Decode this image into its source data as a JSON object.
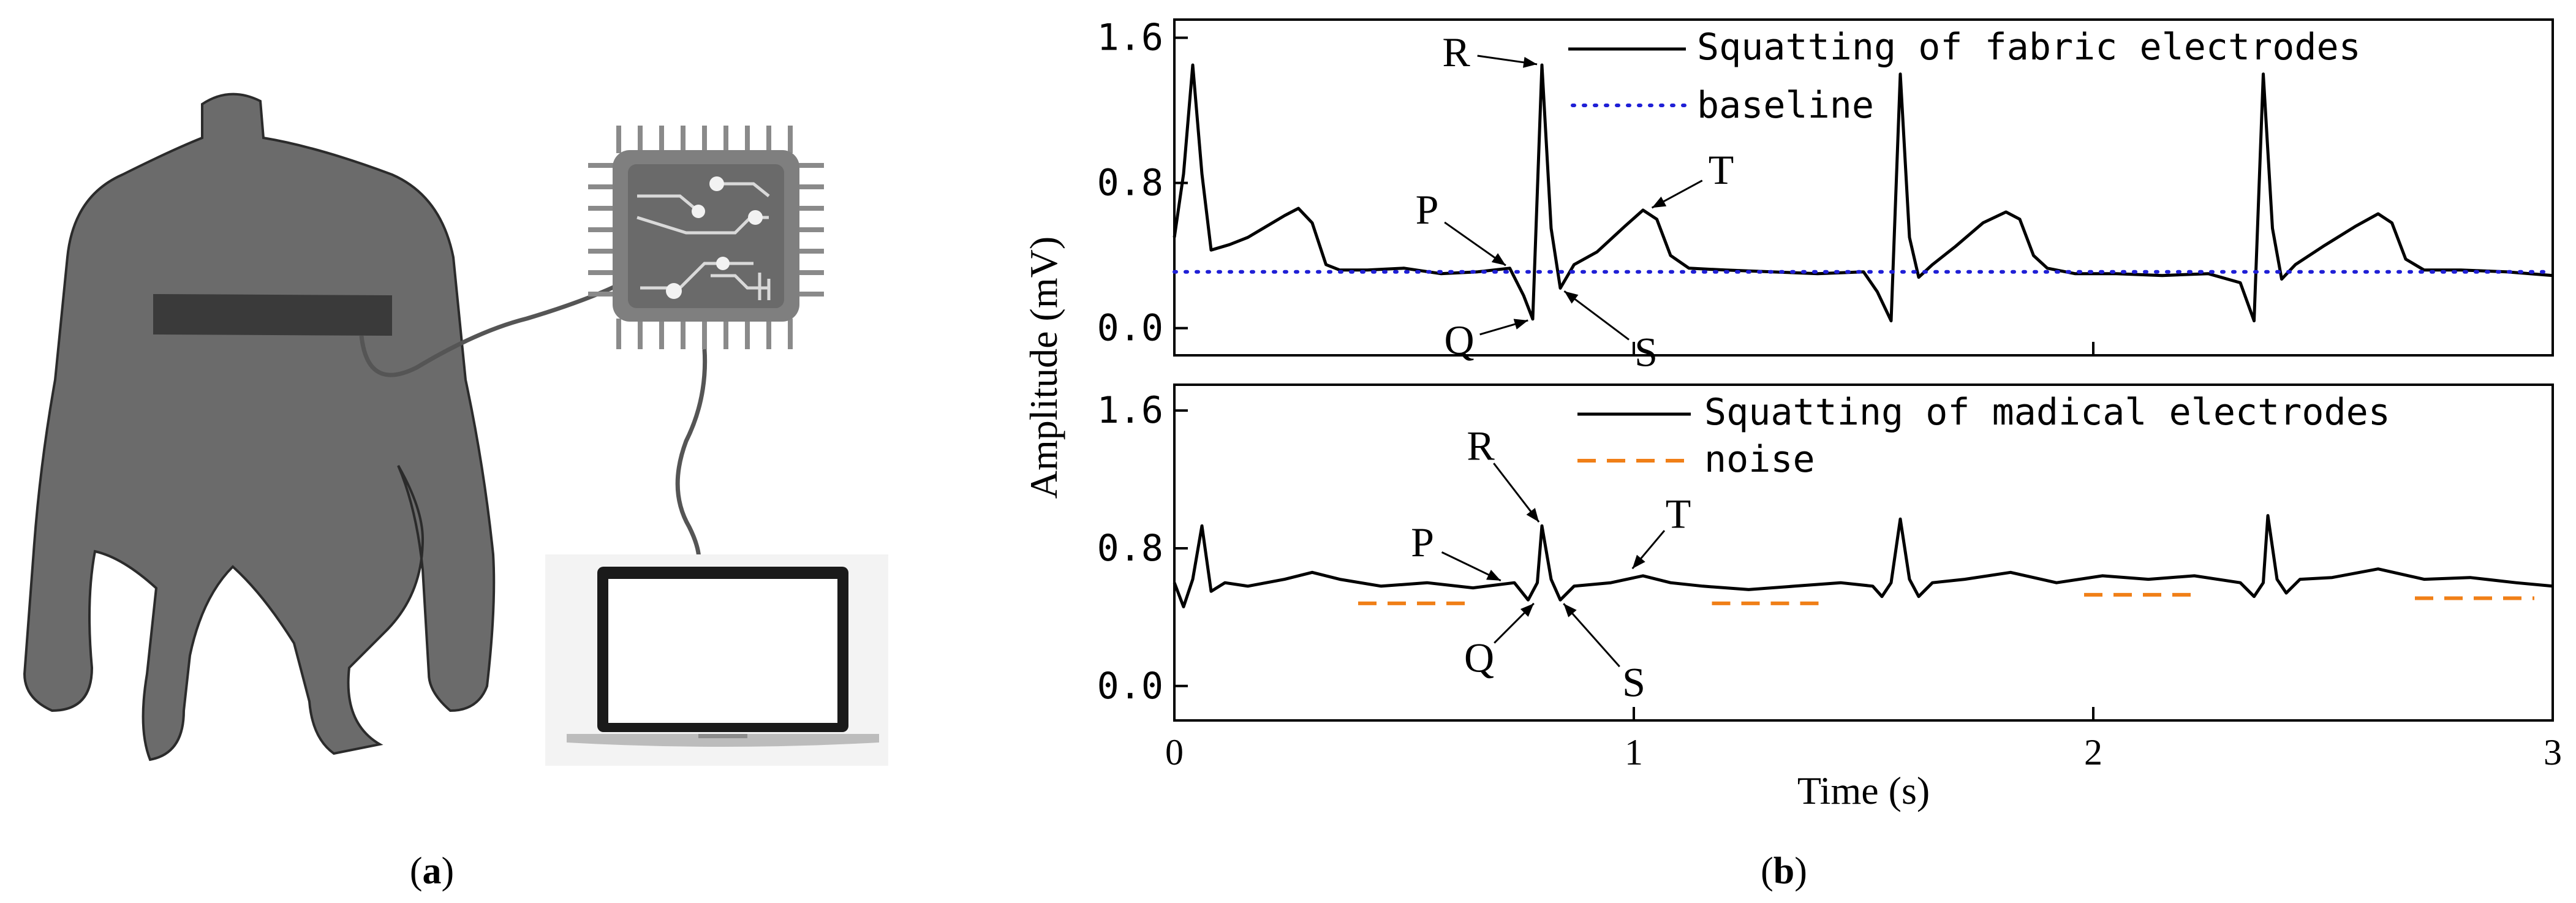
{
  "panel_a": {
    "label_prefix": "(",
    "label_letter": "a",
    "label_suffix": ")"
  },
  "panel_b": {
    "label_prefix": "(",
    "label_letter": "b",
    "label_suffix": ")"
  },
  "chart_data": [
    {
      "type": "line",
      "title": "",
      "xlabel": "",
      "ylabel": "Amplitude (mV)",
      "xlim": [
        0,
        3
      ],
      "ylim": [
        -0.15,
        1.7
      ],
      "yticks": [
        0.0,
        0.8,
        1.6
      ],
      "ytick_labels": [
        "0.0",
        "0.8",
        "1.6"
      ],
      "xticks": [
        0,
        1,
        2,
        3
      ],
      "legend_position": "top-right",
      "colors": {
        "signal": "#000000",
        "baseline": "#1f1fd6"
      },
      "series": [
        {
          "name": "Squatting of fabric electrodes",
          "style": "solid",
          "x": [
            0.0,
            0.02,
            0.04,
            0.06,
            0.08,
            0.12,
            0.16,
            0.2,
            0.24,
            0.27,
            0.3,
            0.33,
            0.36,
            0.42,
            0.5,
            0.58,
            0.66,
            0.73,
            0.76,
            0.78,
            0.8,
            0.82,
            0.84,
            0.87,
            0.92,
            0.98,
            1.02,
            1.05,
            1.08,
            1.12,
            1.2,
            1.3,
            1.4,
            1.5,
            1.53,
            1.56,
            1.58,
            1.6,
            1.62,
            1.65,
            1.7,
            1.76,
            1.81,
            1.84,
            1.87,
            1.9,
            1.96,
            2.05,
            2.15,
            2.25,
            2.32,
            2.35,
            2.37,
            2.39,
            2.41,
            2.44,
            2.5,
            2.57,
            2.62,
            2.65,
            2.68,
            2.72,
            2.8,
            2.9,
            3.0
          ],
          "y": [
            0.5,
            0.85,
            1.45,
            0.85,
            0.43,
            0.46,
            0.5,
            0.56,
            0.62,
            0.66,
            0.58,
            0.35,
            0.32,
            0.32,
            0.33,
            0.3,
            0.31,
            0.33,
            0.18,
            0.05,
            1.45,
            0.55,
            0.22,
            0.35,
            0.42,
            0.56,
            0.65,
            0.6,
            0.4,
            0.33,
            0.32,
            0.31,
            0.3,
            0.31,
            0.2,
            0.04,
            1.4,
            0.5,
            0.28,
            0.35,
            0.45,
            0.58,
            0.64,
            0.6,
            0.4,
            0.33,
            0.3,
            0.3,
            0.29,
            0.3,
            0.25,
            0.04,
            1.4,
            0.55,
            0.27,
            0.35,
            0.45,
            0.56,
            0.63,
            0.58,
            0.38,
            0.32,
            0.32,
            0.31,
            0.29
          ]
        },
        {
          "name": "baseline",
          "style": "dotted",
          "x": [
            0.0,
            3.0
          ],
          "y": [
            0.31,
            0.31
          ]
        }
      ],
      "annotations": [
        {
          "text": "R",
          "x": 0.8,
          "y": 1.45
        },
        {
          "text": "T",
          "x": 1.03,
          "y": 0.65
        },
        {
          "text": "P",
          "x": 0.73,
          "y": 0.33
        },
        {
          "text": "Q",
          "x": 0.78,
          "y": 0.05
        },
        {
          "text": "S",
          "x": 0.84,
          "y": 0.22
        }
      ]
    },
    {
      "type": "line",
      "title": "",
      "xlabel": "Time (s)",
      "ylabel": "Amplitude (mV)",
      "xlim": [
        0,
        3
      ],
      "ylim": [
        -0.2,
        1.75
      ],
      "yticks": [
        0.0,
        0.8,
        1.6
      ],
      "ytick_labels": [
        "0.0",
        "0.8",
        "1.6"
      ],
      "xticks": [
        0,
        1,
        2,
        3
      ],
      "xtick_labels": [
        "0",
        "1",
        "2",
        "3"
      ],
      "legend_position": "top-right",
      "colors": {
        "signal": "#000000",
        "noise": "#f07f17"
      },
      "series": [
        {
          "name": "Squatting of madical electrodes",
          "style": "solid",
          "x": [
            0.0,
            0.02,
            0.04,
            0.06,
            0.08,
            0.11,
            0.16,
            0.24,
            0.3,
            0.36,
            0.45,
            0.55,
            0.65,
            0.74,
            0.77,
            0.79,
            0.8,
            0.82,
            0.84,
            0.87,
            0.95,
            1.02,
            1.08,
            1.15,
            1.25,
            1.35,
            1.45,
            1.52,
            1.54,
            1.56,
            1.58,
            1.6,
            1.62,
            1.65,
            1.72,
            1.82,
            1.92,
            2.02,
            2.12,
            2.22,
            2.32,
            2.35,
            2.37,
            2.38,
            2.4,
            2.42,
            2.45,
            2.52,
            2.62,
            2.72,
            2.82,
            2.92,
            3.0
          ],
          "y": [
            0.6,
            0.46,
            0.62,
            0.93,
            0.55,
            0.6,
            0.58,
            0.62,
            0.66,
            0.62,
            0.58,
            0.6,
            0.57,
            0.6,
            0.5,
            0.6,
            0.93,
            0.62,
            0.5,
            0.58,
            0.6,
            0.64,
            0.6,
            0.58,
            0.56,
            0.58,
            0.6,
            0.58,
            0.52,
            0.6,
            0.97,
            0.62,
            0.52,
            0.6,
            0.62,
            0.66,
            0.6,
            0.64,
            0.62,
            0.64,
            0.6,
            0.52,
            0.6,
            0.99,
            0.62,
            0.54,
            0.62,
            0.63,
            0.68,
            0.62,
            0.63,
            0.6,
            0.58
          ]
        },
        {
          "name": "noise",
          "style": "dashed",
          "segments": [
            {
              "x": [
                0.4,
                0.65
              ],
              "y": [
                0.48,
                0.48
              ]
            },
            {
              "x": [
                1.17,
                1.42
              ],
              "y": [
                0.48,
                0.48
              ]
            },
            {
              "x": [
                1.98,
                2.23
              ],
              "y": [
                0.53,
                0.53
              ]
            },
            {
              "x": [
                2.7,
                2.96
              ],
              "y": [
                0.51,
                0.51
              ]
            }
          ]
        }
      ],
      "annotations": [
        {
          "text": "R",
          "x": 0.8,
          "y": 0.93
        },
        {
          "text": "T",
          "x": 0.99,
          "y": 0.66
        },
        {
          "text": "P",
          "x": 0.72,
          "y": 0.6
        },
        {
          "text": "Q",
          "x": 0.79,
          "y": 0.5
        },
        {
          "text": "S",
          "x": 0.84,
          "y": 0.5
        }
      ]
    }
  ]
}
